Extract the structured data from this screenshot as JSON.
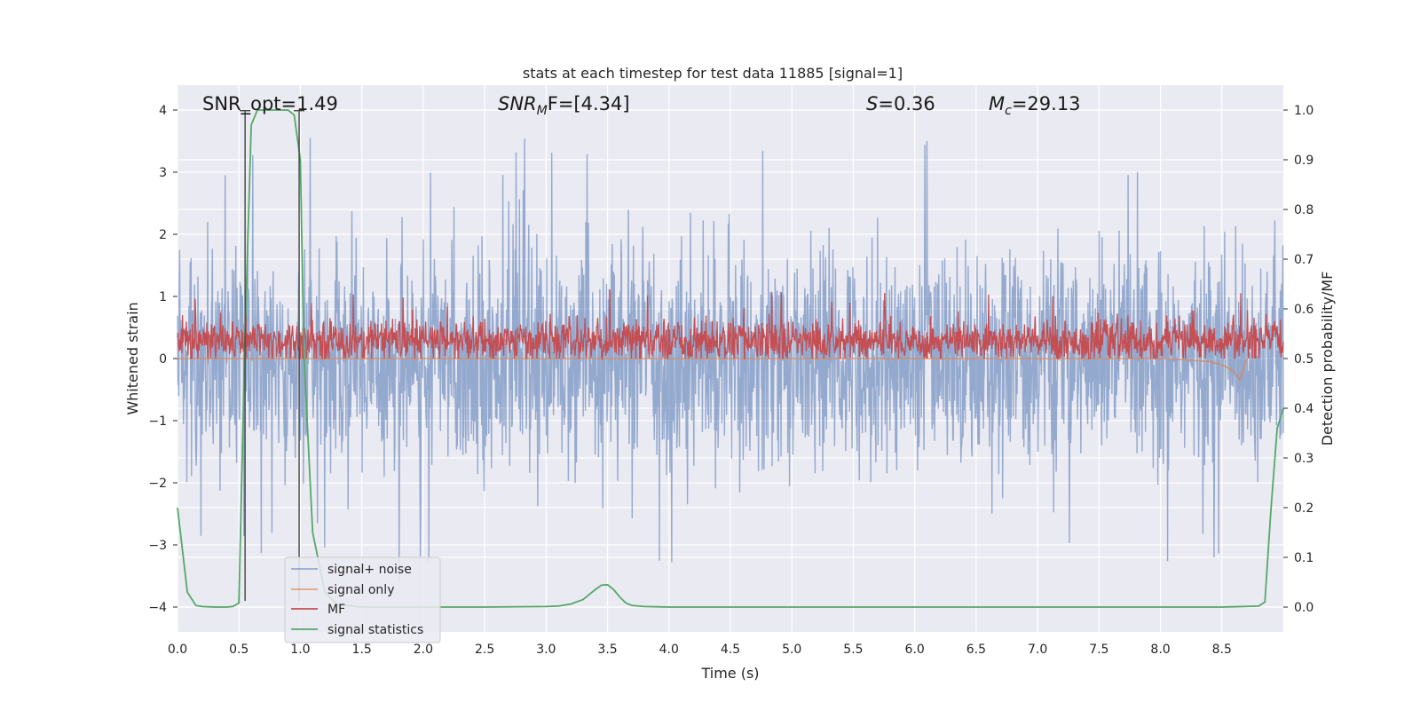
{
  "chart_data": {
    "type": "line",
    "title": "stats at each timestep for test data 11885 [signal=1]",
    "xlabel": "Time (s)",
    "ylabel_left": "Whitened strain",
    "ylabel_right": "Detection probability/MF",
    "xlim": [
      0,
      9.0
    ],
    "ylim_left": [
      -4.4,
      4.4
    ],
    "ylim_right": [
      -0.05,
      1.05
    ],
    "x_ticks": [
      "0.0",
      "0.5",
      "1.0",
      "1.5",
      "2.0",
      "2.5",
      "3.0",
      "3.5",
      "4.0",
      "4.5",
      "5.0",
      "5.5",
      "6.0",
      "6.5",
      "7.0",
      "7.5",
      "8.0",
      "8.5"
    ],
    "y_left_ticks": [
      "−4",
      "−3",
      "−2",
      "−1",
      "0",
      "1",
      "2",
      "3",
      "4"
    ],
    "y_right_ticks": [
      "0.0",
      "0.1",
      "0.2",
      "0.3",
      "0.4",
      "0.5",
      "0.6",
      "0.7",
      "0.8",
      "0.9",
      "1.0"
    ],
    "grid": true,
    "legend_position": "lower-left",
    "annotations": {
      "snr_opt": "SNR_opt=1.49",
      "snr_mf_sym": "SNR",
      "snr_mf_sub": "M",
      "snr_mf_rest": "F=[4.34]",
      "s_sym": "S",
      "s_rest": "=0.36",
      "mc_sym": "M",
      "mc_sub": "c",
      "mc_rest": "=29.13"
    },
    "vertical_markers": [
      0.55,
      0.99
    ],
    "series": [
      {
        "name": "signal+ noise",
        "axis": "left",
        "color": "#4c72b0",
        "style": "dense noise band, roughly ±1.5 with spikes to ±3 and max about 4",
        "x_range": [
          0,
          9.0
        ]
      },
      {
        "name": "signal only",
        "axis": "left",
        "color": "#dd8452",
        "style": "near zero, chirp growing to about −0.35 near 8.65 s",
        "x": [
          8.0,
          8.2,
          8.4,
          8.5,
          8.55,
          8.6,
          8.65,
          8.7
        ],
        "y": [
          0.0,
          -0.02,
          -0.05,
          -0.1,
          -0.15,
          -0.22,
          -0.35,
          0.0
        ]
      },
      {
        "name": "MF",
        "axis": "right",
        "color": "#c44e52",
        "style": "noisy band between about 0.50 and 0.58, peaks near 0.64",
        "x_range": [
          0,
          9.0
        ]
      },
      {
        "name": "signal statistics",
        "axis": "right",
        "color": "#55a868",
        "x": [
          0.0,
          0.08,
          0.15,
          0.2,
          0.3,
          0.4,
          0.45,
          0.5,
          0.55,
          0.6,
          0.65,
          0.7,
          0.8,
          0.9,
          0.95,
          1.0,
          1.03,
          1.1,
          1.2,
          1.3,
          1.5,
          2.0,
          2.5,
          3.0,
          3.1,
          3.2,
          3.3,
          3.4,
          3.45,
          3.5,
          3.55,
          3.6,
          3.65,
          3.7,
          3.8,
          4.0,
          5.0,
          6.0,
          7.0,
          8.0,
          8.5,
          8.8,
          8.85,
          8.9,
          8.95,
          9.0
        ],
        "y": [
          0.2,
          0.03,
          0.003,
          0.001,
          0.0,
          0.0,
          0.001,
          0.008,
          0.55,
          0.97,
          1.0,
          1.0,
          1.0,
          1.0,
          0.99,
          0.9,
          0.5,
          0.15,
          0.03,
          0.005,
          0.0,
          0.0,
          0.0,
          0.001,
          0.002,
          0.006,
          0.015,
          0.035,
          0.044,
          0.045,
          0.035,
          0.02,
          0.008,
          0.003,
          0.001,
          0.0,
          0.0,
          0.0,
          0.0,
          0.0,
          0.0,
          0.002,
          0.01,
          0.2,
          0.36,
          0.4
        ]
      }
    ],
    "legend": [
      "signal+ noise",
      "signal only",
      "MF",
      "signal statistics"
    ]
  }
}
